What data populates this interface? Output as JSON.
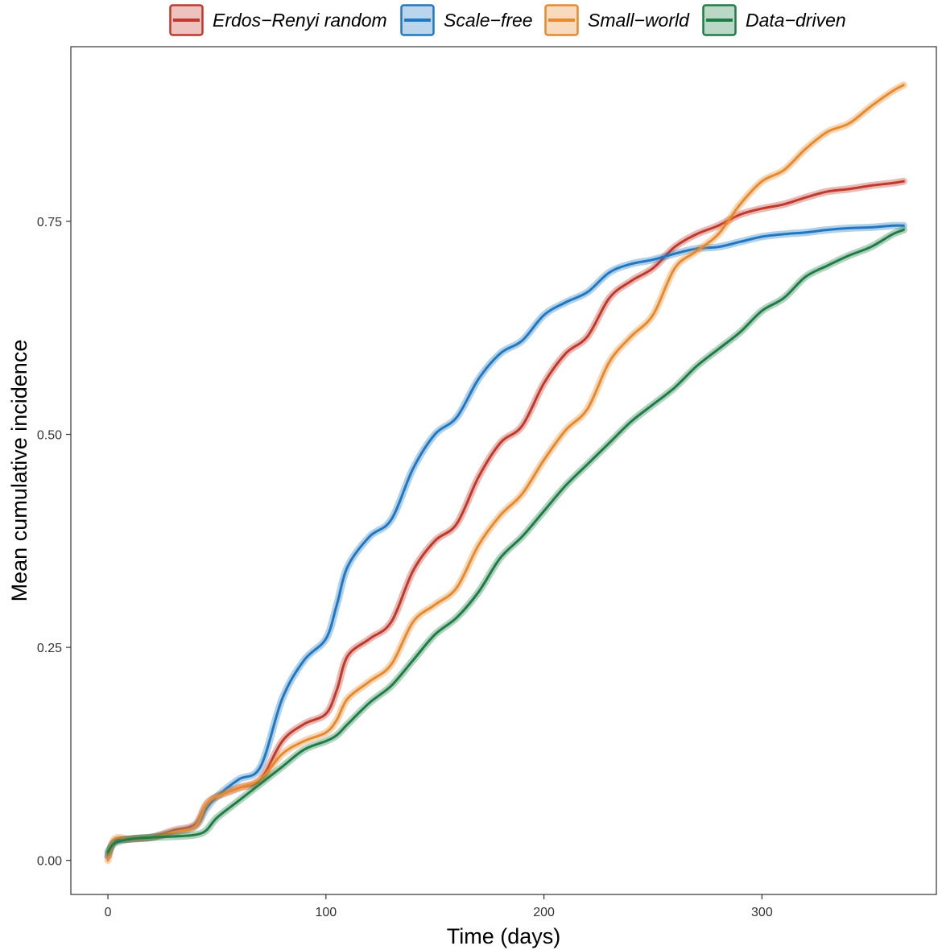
{
  "chart_data": {
    "type": "line",
    "title": "",
    "xlabel": "Time (days)",
    "ylabel": "Mean cumulative incidence",
    "xlim": [
      -17,
      380
    ],
    "ylim": [
      -0.04,
      0.955
    ],
    "x_ticks": [
      0,
      100,
      200,
      300
    ],
    "x_tick_labels": [
      "0",
      "100",
      "200",
      "300"
    ],
    "y_ticks": [
      0,
      0.25,
      0.5,
      0.75
    ],
    "y_tick_labels": [
      "0.00",
      "0.25",
      "0.50",
      "0.75"
    ],
    "grid": false,
    "legend_position": "top",
    "x": [
      0,
      3,
      10,
      20,
      30,
      40,
      45,
      50,
      60,
      70,
      80,
      90,
      100,
      105,
      110,
      120,
      130,
      140,
      150,
      160,
      170,
      180,
      190,
      200,
      210,
      220,
      230,
      240,
      250,
      260,
      270,
      280,
      290,
      300,
      310,
      320,
      330,
      340,
      350,
      360,
      365
    ],
    "series": [
      {
        "name": "Erdos−Renyi random",
        "color": "#C0392B",
        "values": [
          0.005,
          0.022,
          0.025,
          0.027,
          0.035,
          0.042,
          0.065,
          0.075,
          0.085,
          0.095,
          0.14,
          0.16,
          0.172,
          0.2,
          0.24,
          0.26,
          0.28,
          0.34,
          0.375,
          0.395,
          0.45,
          0.49,
          0.51,
          0.56,
          0.595,
          0.615,
          0.66,
          0.68,
          0.695,
          0.72,
          0.735,
          0.745,
          0.758,
          0.765,
          0.77,
          0.778,
          0.785,
          0.788,
          0.792,
          0.795,
          0.797
        ]
      },
      {
        "name": "Scale−free",
        "color": "#1F78C1",
        "values": [
          0.005,
          0.022,
          0.025,
          0.027,
          0.033,
          0.04,
          0.06,
          0.075,
          0.095,
          0.11,
          0.19,
          0.235,
          0.26,
          0.3,
          0.345,
          0.38,
          0.4,
          0.46,
          0.5,
          0.52,
          0.565,
          0.595,
          0.61,
          0.64,
          0.655,
          0.667,
          0.69,
          0.7,
          0.705,
          0.712,
          0.718,
          0.72,
          0.726,
          0.732,
          0.735,
          0.737,
          0.74,
          0.742,
          0.743,
          0.745,
          0.745
        ]
      },
      {
        "name": "Small−world",
        "color": "#E8892B",
        "values": [
          0.0,
          0.025,
          0.025,
          0.027,
          0.033,
          0.04,
          0.065,
          0.075,
          0.085,
          0.095,
          0.125,
          0.14,
          0.15,
          0.165,
          0.19,
          0.21,
          0.23,
          0.28,
          0.3,
          0.32,
          0.37,
          0.405,
          0.43,
          0.47,
          0.505,
          0.53,
          0.585,
          0.615,
          0.64,
          0.695,
          0.715,
          0.735,
          0.77,
          0.797,
          0.81,
          0.835,
          0.855,
          0.865,
          0.885,
          0.903,
          0.91
        ]
      },
      {
        "name": "Data−driven",
        "color": "#1E7D45",
        "values": [
          0.01,
          0.02,
          0.025,
          0.027,
          0.028,
          0.03,
          0.035,
          0.05,
          0.07,
          0.09,
          0.11,
          0.13,
          0.14,
          0.147,
          0.16,
          0.185,
          0.205,
          0.235,
          0.265,
          0.285,
          0.315,
          0.355,
          0.38,
          0.41,
          0.44,
          0.465,
          0.49,
          0.515,
          0.535,
          0.555,
          0.58,
          0.6,
          0.62,
          0.645,
          0.66,
          0.685,
          0.698,
          0.71,
          0.72,
          0.735,
          0.74
        ]
      }
    ]
  }
}
